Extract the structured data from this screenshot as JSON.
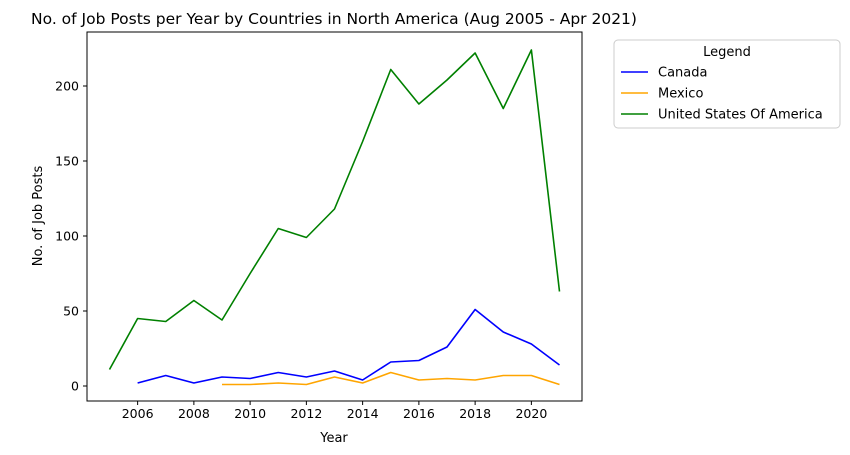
{
  "chart_data": {
    "type": "line",
    "title": "No. of Job Posts per Year by Countries in North America (Aug 2005 - Apr 2021)",
    "xlabel": "Year",
    "ylabel": "No. of Job Posts",
    "xlim": [
      2004.2,
      2021.8
    ],
    "ylim": [
      -10,
      236
    ],
    "xticks": [
      2006,
      2008,
      2010,
      2012,
      2014,
      2016,
      2018,
      2020
    ],
    "yticks": [
      0,
      50,
      100,
      150,
      200
    ],
    "grid": false,
    "legend": {
      "title": "Legend",
      "placement": "outside-top-right"
    },
    "series": [
      {
        "name": "Canada",
        "color": "#0000ff",
        "x": [
          2006,
          2007,
          2008,
          2009,
          2010,
          2011,
          2012,
          2013,
          2014,
          2015,
          2016,
          2017,
          2018,
          2019,
          2020,
          2021
        ],
        "values": [
          2,
          7,
          2,
          6,
          5,
          9,
          6,
          10,
          4,
          16,
          17,
          26,
          51,
          36,
          28,
          14
        ]
      },
      {
        "name": "Mexico",
        "color": "#ffa500",
        "x": [
          2009,
          2010,
          2011,
          2012,
          2013,
          2014,
          2015,
          2016,
          2017,
          2018,
          2019,
          2020,
          2021
        ],
        "values": [
          1,
          1,
          2,
          1,
          6,
          2,
          9,
          4,
          5,
          4,
          7,
          7,
          1
        ]
      },
      {
        "name": "United States Of America",
        "color": "#008000",
        "x": [
          2005,
          2006,
          2007,
          2008,
          2009,
          2010,
          2011,
          2012,
          2013,
          2014,
          2015,
          2016,
          2017,
          2018,
          2019,
          2020,
          2021
        ],
        "values": [
          11,
          45,
          43,
          57,
          44,
          75,
          105,
          99,
          118,
          163,
          211,
          188,
          204,
          222,
          185,
          224,
          63
        ]
      }
    ]
  }
}
